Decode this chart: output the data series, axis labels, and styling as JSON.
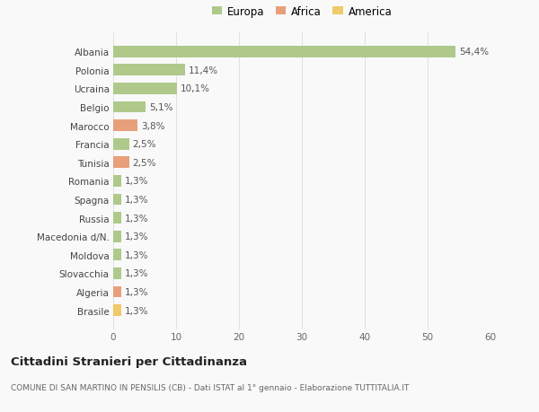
{
  "categories": [
    "Albania",
    "Polonia",
    "Ucraina",
    "Belgio",
    "Marocco",
    "Francia",
    "Tunisia",
    "Romania",
    "Spagna",
    "Russia",
    "Macedonia d/N.",
    "Moldova",
    "Slovacchia",
    "Algeria",
    "Brasile"
  ],
  "values": [
    54.4,
    11.4,
    10.1,
    5.1,
    3.8,
    2.5,
    2.5,
    1.3,
    1.3,
    1.3,
    1.3,
    1.3,
    1.3,
    1.3,
    1.3
  ],
  "labels": [
    "54,4%",
    "11,4%",
    "10,1%",
    "5,1%",
    "3,8%",
    "2,5%",
    "2,5%",
    "1,3%",
    "1,3%",
    "1,3%",
    "1,3%",
    "1,3%",
    "1,3%",
    "1,3%",
    "1,3%"
  ],
  "continents": [
    "Europa",
    "Europa",
    "Europa",
    "Europa",
    "Africa",
    "Europa",
    "Africa",
    "Europa",
    "Europa",
    "Europa",
    "Europa",
    "Europa",
    "Europa",
    "Africa",
    "America"
  ],
  "colors": {
    "Europa": "#aec98a",
    "Africa": "#e8a07a",
    "America": "#f0c96a"
  },
  "legend_labels": [
    "Europa",
    "Africa",
    "America"
  ],
  "legend_colors": [
    "#aec98a",
    "#e8a07a",
    "#f0c96a"
  ],
  "xlim": [
    0,
    60
  ],
  "xticks": [
    0,
    10,
    20,
    30,
    40,
    50,
    60
  ],
  "title": "Cittadini Stranieri per Cittadinanza",
  "subtitle": "COMUNE DI SAN MARTINO IN PENSILIS (CB) - Dati ISTAT al 1° gennaio - Elaborazione TUTTITALIA.IT",
  "bg_color": "#f9f9f9",
  "grid_color": "#e0e0e0"
}
